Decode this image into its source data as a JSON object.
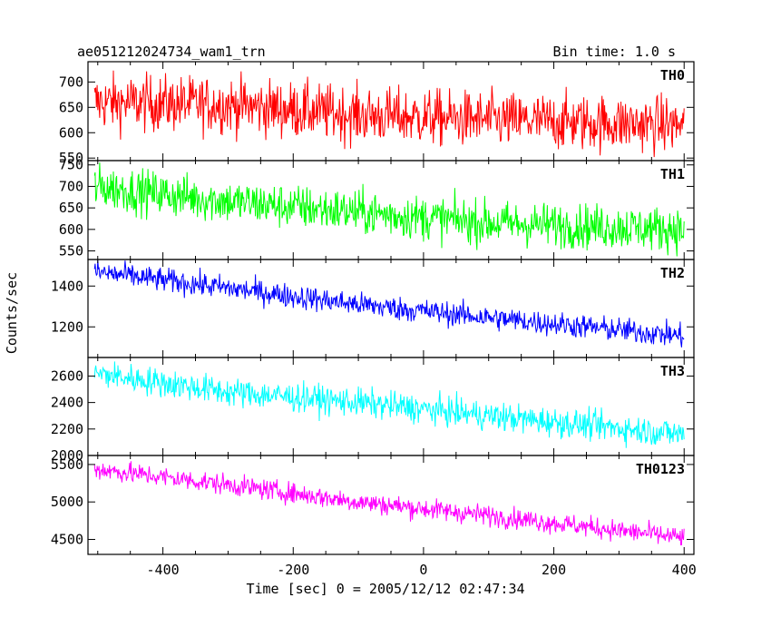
{
  "header": {
    "title": "ae051212024734_wam1_trn",
    "bin_time": "Bin time: 1.0 s"
  },
  "axes": {
    "ylabel": "Counts/sec",
    "xlabel": "Time [sec] 0 = 2005/12/12 02:47:34"
  },
  "chart_data": {
    "type": "line",
    "shared_x": {
      "range": [
        -515,
        415
      ],
      "ticks": [
        -400,
        -200,
        0,
        200,
        400
      ],
      "label": "Time [sec] 0 = 2005/12/12 02:47:34"
    },
    "panels": [
      {
        "name": "TH0",
        "color": "#ff0000",
        "ylim": [
          545,
          740
        ],
        "yticks": [
          550,
          600,
          650,
          700
        ],
        "trend": [
          [
            -505,
            660
          ],
          [
            -300,
            655
          ],
          [
            -100,
            635
          ],
          [
            100,
            625
          ],
          [
            400,
            615
          ]
        ],
        "noise": 28,
        "x_range": [
          -505,
          400
        ]
      },
      {
        "name": "TH1",
        "color": "#00ff00",
        "ylim": [
          530,
          760
        ],
        "yticks": [
          550,
          600,
          650,
          700,
          750
        ],
        "trend": [
          [
            -505,
            700
          ],
          [
            -300,
            665
          ],
          [
            -100,
            640
          ],
          [
            100,
            615
          ],
          [
            400,
            600
          ]
        ],
        "noise": 26,
        "x_range": [
          -505,
          400
        ]
      },
      {
        "name": "TH2",
        "color": "#0000ff",
        "ylim": [
          1050,
          1530
        ],
        "yticks": [
          1200,
          1400
        ],
        "trend": [
          [
            -505,
            1470
          ],
          [
            -300,
            1390
          ],
          [
            -100,
            1310
          ],
          [
            100,
            1245
          ],
          [
            400,
            1155
          ]
        ],
        "noise": 30,
        "x_range": [
          -505,
          400
        ]
      },
      {
        "name": "TH3",
        "color": "#00ffff",
        "ylim": [
          2000,
          2740
        ],
        "yticks": [
          2000,
          2200,
          2400,
          2600
        ],
        "trend": [
          [
            -505,
            2620
          ],
          [
            -300,
            2480
          ],
          [
            -100,
            2400
          ],
          [
            100,
            2300
          ],
          [
            400,
            2160
          ]
        ],
        "noise": 55,
        "x_range": [
          -505,
          400
        ]
      },
      {
        "name": "TH0123",
        "color": "#ff00ff",
        "ylim": [
          4300,
          5620
        ],
        "yticks": [
          4500,
          5000,
          5500
        ],
        "trend": [
          [
            -505,
            5440
          ],
          [
            -300,
            5230
          ],
          [
            -100,
            5000
          ],
          [
            100,
            4820
          ],
          [
            400,
            4520
          ]
        ],
        "noise": 70,
        "x_range": [
          -505,
          400
        ]
      }
    ]
  }
}
